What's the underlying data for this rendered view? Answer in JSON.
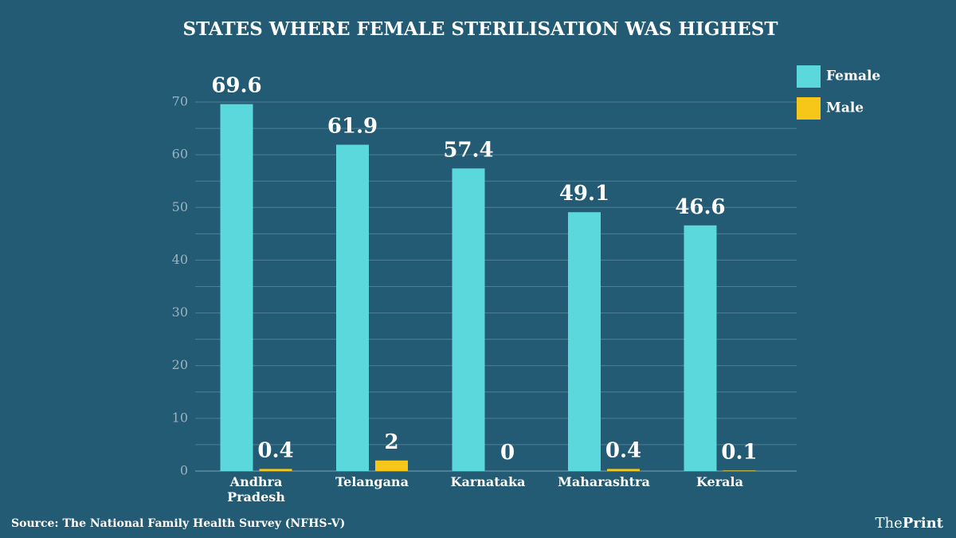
{
  "chart_data": {
    "type": "bar",
    "title": "STATES WHERE FEMALE STERILISATION WAS HIGHEST",
    "categories": [
      "Andhra Pradesh",
      "Telangana",
      "Karnataka",
      "Maharashtra",
      "Kerala"
    ],
    "series": [
      {
        "name": "Female",
        "color": "#5ad8dc",
        "values": [
          69.6,
          61.9,
          57.4,
          49.1,
          46.6
        ]
      },
      {
        "name": "Male",
        "color": "#f6c619",
        "values": [
          0.4,
          2,
          0,
          0.4,
          0.1
        ]
      }
    ],
    "ylim": [
      0,
      70
    ],
    "yticks": [
      0,
      10,
      20,
      30,
      40,
      50,
      60,
      70
    ],
    "yminor": [
      5,
      15,
      25,
      35,
      45,
      55,
      65
    ],
    "grid": true,
    "legend": "top-right",
    "source": "Source: The National Family Health Survey (NFHS-V)",
    "brand": [
      "The",
      "Print"
    ]
  }
}
